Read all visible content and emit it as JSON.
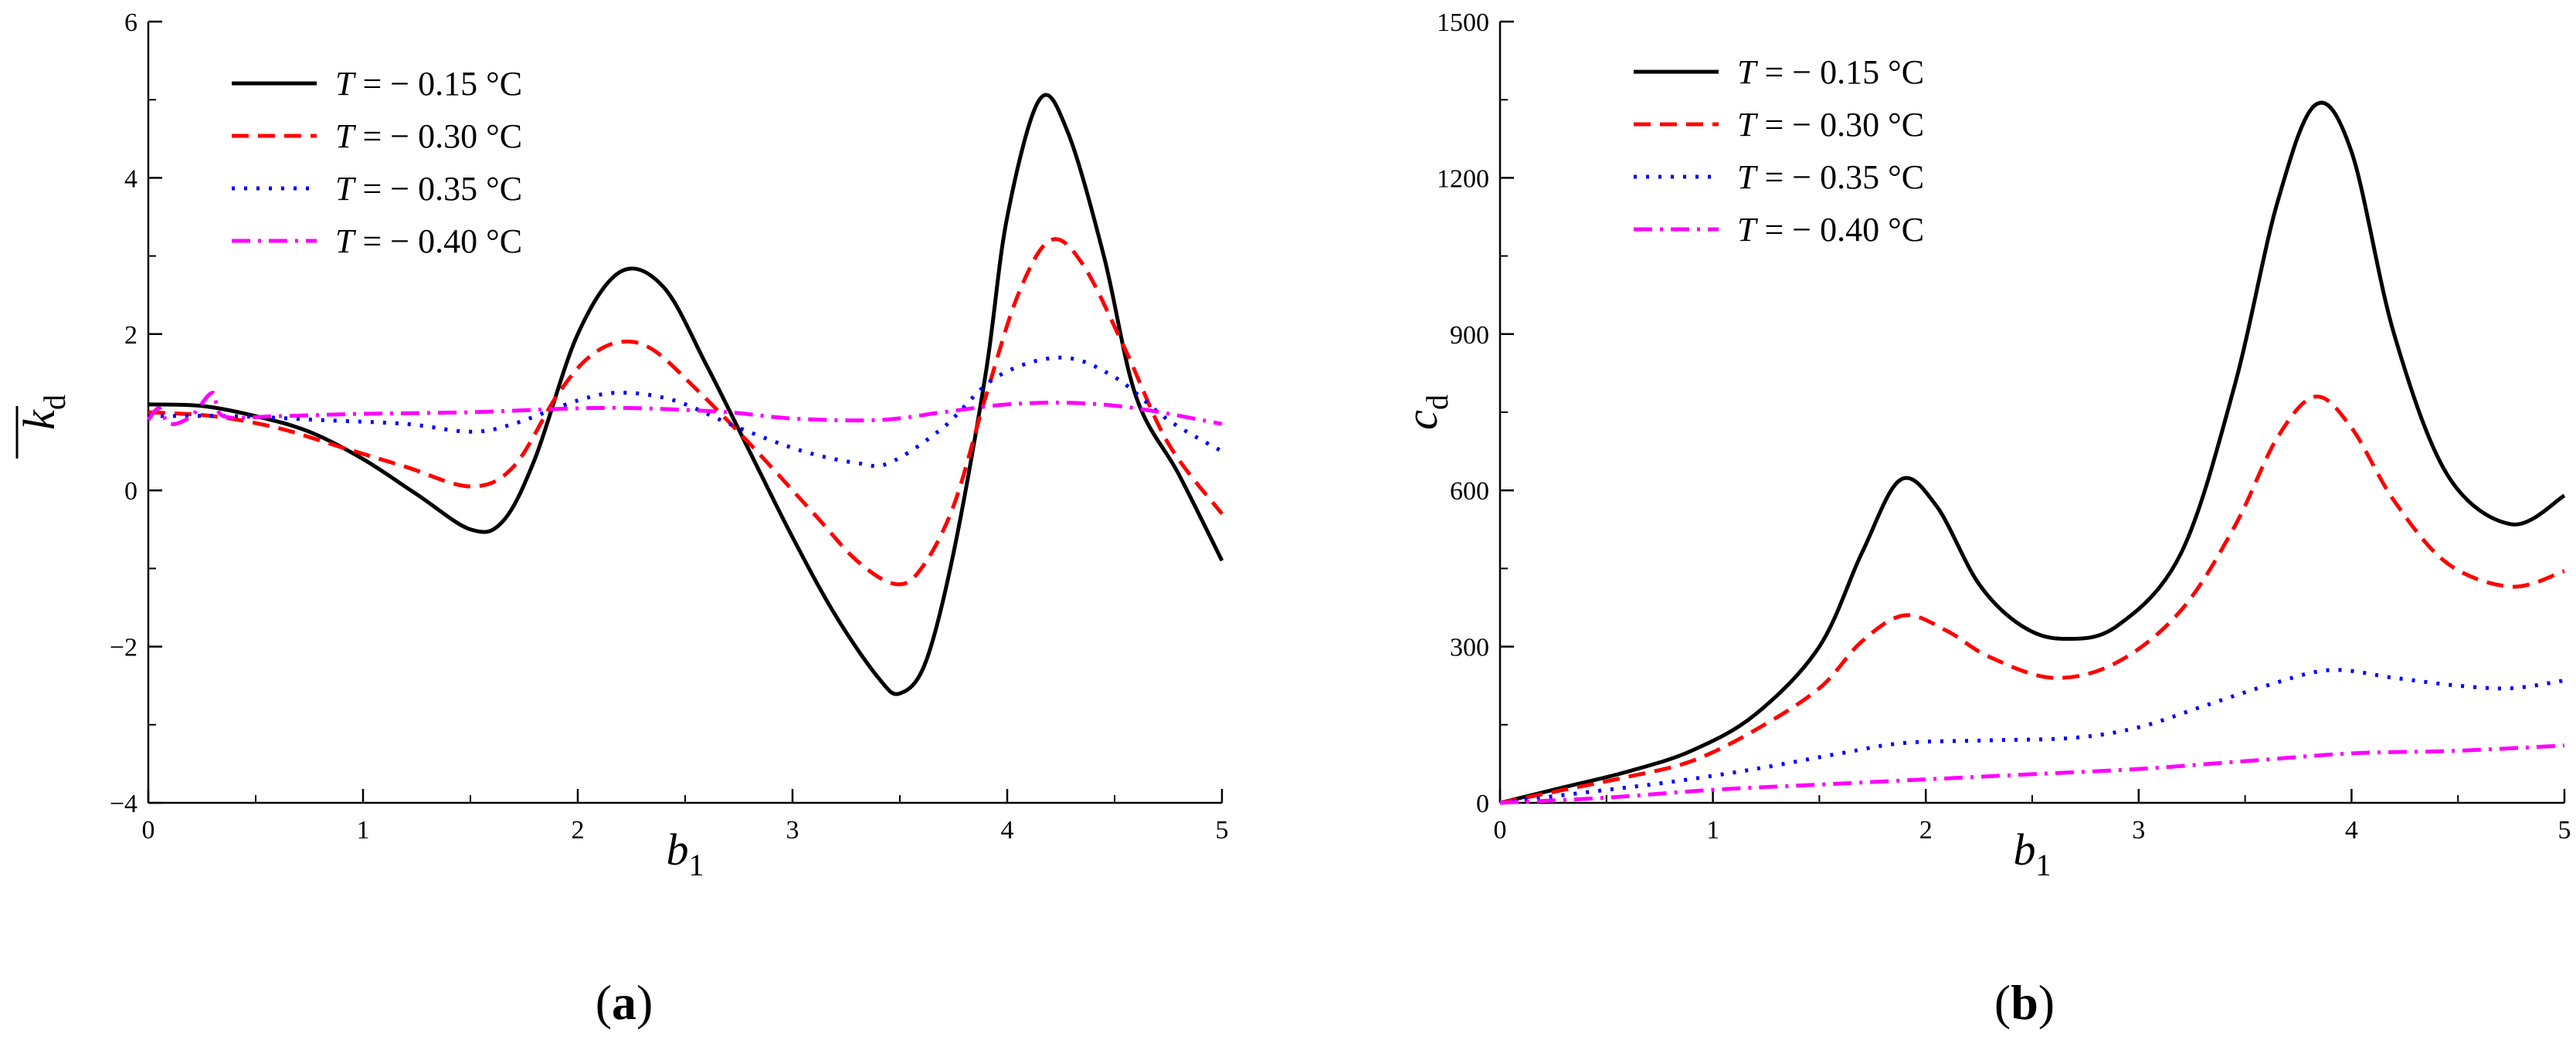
{
  "chart_data": [
    {
      "type": "line",
      "panel_label": "(a)",
      "xlabel": {
        "base": "b",
        "sub": "1"
      },
      "ylabel": {
        "base": "k",
        "sub": "d",
        "overline": true
      },
      "xlim": [
        0,
        5
      ],
      "ylim": [
        -4,
        6
      ],
      "xticks": [
        0,
        1,
        2,
        3,
        4,
        5
      ],
      "yticks": [
        -4,
        -2,
        0,
        2,
        4,
        6
      ],
      "grid": false,
      "legend_position": "top-left",
      "series": [
        {
          "name": "T = − 0.15 °C",
          "color": "#000000",
          "dash": "solid",
          "points": [
            [
              0,
              1.1
            ],
            [
              0.25,
              1.08
            ],
            [
              0.5,
              0.95
            ],
            [
              0.75,
              0.75
            ],
            [
              1,
              0.4
            ],
            [
              1.25,
              -0.05
            ],
            [
              1.5,
              -0.5
            ],
            [
              1.65,
              -0.4
            ],
            [
              1.8,
              0.4
            ],
            [
              2.0,
              2.0
            ],
            [
              2.2,
              2.8
            ],
            [
              2.4,
              2.6
            ],
            [
              2.6,
              1.6
            ],
            [
              2.8,
              0.5
            ],
            [
              3.0,
              -0.6
            ],
            [
              3.2,
              -1.6
            ],
            [
              3.4,
              -2.4
            ],
            [
              3.5,
              -2.6
            ],
            [
              3.62,
              -2.2
            ],
            [
              3.75,
              -0.8
            ],
            [
              3.9,
              1.5
            ],
            [
              4.0,
              3.5
            ],
            [
              4.15,
              5.0
            ],
            [
              4.28,
              4.6
            ],
            [
              4.45,
              3.0
            ],
            [
              4.6,
              1.2
            ],
            [
              4.8,
              0.2
            ],
            [
              5.0,
              -0.9
            ]
          ]
        },
        {
          "name": "T = − 0.30 °C",
          "color": "#ff0000",
          "dash": "dashed",
          "points": [
            [
              0,
              1.0
            ],
            [
              0.3,
              0.95
            ],
            [
              0.6,
              0.8
            ],
            [
              0.9,
              0.55
            ],
            [
              1.2,
              0.3
            ],
            [
              1.5,
              0.05
            ],
            [
              1.7,
              0.3
            ],
            [
              1.9,
              1.2
            ],
            [
              2.05,
              1.7
            ],
            [
              2.2,
              1.9
            ],
            [
              2.35,
              1.8
            ],
            [
              2.55,
              1.3
            ],
            [
              2.8,
              0.6
            ],
            [
              3.1,
              -0.3
            ],
            [
              3.3,
              -0.9
            ],
            [
              3.48,
              -1.2
            ],
            [
              3.6,
              -1.0
            ],
            [
              3.75,
              -0.2
            ],
            [
              3.9,
              1.2
            ],
            [
              4.05,
              2.5
            ],
            [
              4.2,
              3.2
            ],
            [
              4.35,
              2.9
            ],
            [
              4.55,
              1.8
            ],
            [
              4.75,
              0.6
            ],
            [
              5.0,
              -0.3
            ]
          ]
        },
        {
          "name": "T = − 0.35 °C",
          "color": "#0000ff",
          "dash": "dotted",
          "points": [
            [
              0,
              0.95
            ],
            [
              0.4,
              0.95
            ],
            [
              0.8,
              0.9
            ],
            [
              1.2,
              0.85
            ],
            [
              1.5,
              0.75
            ],
            [
              1.7,
              0.85
            ],
            [
              2.0,
              1.15
            ],
            [
              2.2,
              1.25
            ],
            [
              2.45,
              1.15
            ],
            [
              2.75,
              0.8
            ],
            [
              3.05,
              0.5
            ],
            [
              3.3,
              0.35
            ],
            [
              3.45,
              0.35
            ],
            [
              3.7,
              0.8
            ],
            [
              3.95,
              1.45
            ],
            [
              4.25,
              1.7
            ],
            [
              4.5,
              1.45
            ],
            [
              4.75,
              0.9
            ],
            [
              5.0,
              0.5
            ]
          ]
        },
        {
          "name": "T = − 0.40 °C",
          "color": "#ff00ff",
          "dash": "dashdot",
          "points": [
            [
              0,
              0.9
            ],
            [
              0.05,
              1.05
            ],
            [
              0.1,
              0.85
            ],
            [
              0.2,
              0.95
            ],
            [
              0.3,
              1.25
            ],
            [
              0.35,
              0.95
            ],
            [
              0.6,
              0.95
            ],
            [
              1.0,
              0.98
            ],
            [
              1.5,
              1.0
            ],
            [
              2.0,
              1.05
            ],
            [
              2.3,
              1.05
            ],
            [
              2.7,
              1.0
            ],
            [
              3.0,
              0.92
            ],
            [
              3.4,
              0.9
            ],
            [
              3.7,
              1.0
            ],
            [
              4.0,
              1.1
            ],
            [
              4.3,
              1.12
            ],
            [
              4.6,
              1.05
            ],
            [
              5.0,
              0.85
            ]
          ]
        }
      ]
    },
    {
      "type": "line",
      "panel_label": "(b)",
      "xlabel": {
        "base": "b",
        "sub": "1"
      },
      "ylabel": {
        "base": "c",
        "sub": "d",
        "overline": false
      },
      "xlim": [
        0,
        5
      ],
      "ylim": [
        0,
        1500
      ],
      "xticks": [
        0,
        1,
        2,
        3,
        4,
        5
      ],
      "yticks": [
        0,
        300,
        600,
        900,
        1200,
        1500
      ],
      "grid": false,
      "legend_position": "top-left",
      "series": [
        {
          "name": "T = − 0.15 °C",
          "color": "#000000",
          "dash": "solid",
          "points": [
            [
              0,
              0
            ],
            [
              0.3,
              30
            ],
            [
              0.6,
              60
            ],
            [
              0.9,
              100
            ],
            [
              1.2,
              170
            ],
            [
              1.5,
              300
            ],
            [
              1.7,
              480
            ],
            [
              1.88,
              620
            ],
            [
              2.05,
              570
            ],
            [
              2.25,
              420
            ],
            [
              2.45,
              340
            ],
            [
              2.65,
              315
            ],
            [
              2.9,
              340
            ],
            [
              3.2,
              480
            ],
            [
              3.45,
              800
            ],
            [
              3.65,
              1150
            ],
            [
              3.83,
              1340
            ],
            [
              4.0,
              1250
            ],
            [
              4.2,
              900
            ],
            [
              4.45,
              630
            ],
            [
              4.75,
              535
            ],
            [
              5.0,
              590
            ]
          ]
        },
        {
          "name": "T = − 0.30 °C",
          "color": "#ff0000",
          "dash": "dashed",
          "points": [
            [
              0,
              0
            ],
            [
              0.3,
              25
            ],
            [
              0.6,
              50
            ],
            [
              0.9,
              80
            ],
            [
              1.2,
              140
            ],
            [
              1.5,
              220
            ],
            [
              1.7,
              310
            ],
            [
              1.9,
              360
            ],
            [
              2.1,
              330
            ],
            [
              2.3,
              280
            ],
            [
              2.6,
              240
            ],
            [
              2.9,
              270
            ],
            [
              3.2,
              370
            ],
            [
              3.45,
              530
            ],
            [
              3.65,
              700
            ],
            [
              3.83,
              780
            ],
            [
              4.0,
              720
            ],
            [
              4.2,
              580
            ],
            [
              4.45,
              460
            ],
            [
              4.75,
              415
            ],
            [
              5.0,
              445
            ]
          ]
        },
        {
          "name": "T = − 0.35 °C",
          "color": "#0000ff",
          "dash": "dotted",
          "points": [
            [
              0,
              0
            ],
            [
              0.4,
              20
            ],
            [
              0.8,
              40
            ],
            [
              1.2,
              65
            ],
            [
              1.6,
              95
            ],
            [
              1.9,
              115
            ],
            [
              2.3,
              120
            ],
            [
              2.7,
              125
            ],
            [
              3.0,
              145
            ],
            [
              3.3,
              185
            ],
            [
              3.6,
              225
            ],
            [
              3.9,
              255
            ],
            [
              4.2,
              240
            ],
            [
              4.5,
              225
            ],
            [
              4.75,
              220
            ],
            [
              5.0,
              235
            ]
          ]
        },
        {
          "name": "T = − 0.40 °C",
          "color": "#ff00ff",
          "dash": "dashdot",
          "points": [
            [
              0,
              0
            ],
            [
              0.5,
              10
            ],
            [
              1.0,
              25
            ],
            [
              1.5,
              35
            ],
            [
              2.0,
              45
            ],
            [
              2.5,
              55
            ],
            [
              3.0,
              65
            ],
            [
              3.5,
              80
            ],
            [
              4.0,
              95
            ],
            [
              4.5,
              100
            ],
            [
              5.0,
              110
            ]
          ]
        }
      ]
    }
  ]
}
